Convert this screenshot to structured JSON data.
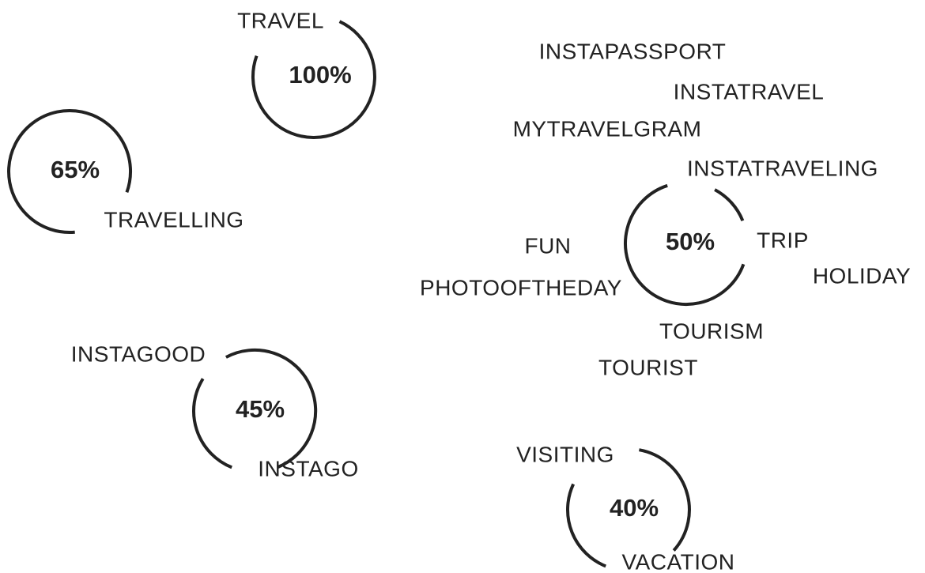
{
  "clusters": [
    {
      "percent": "100%",
      "tags": [
        "TRAVEL"
      ]
    },
    {
      "percent": "65%",
      "tags": [
        "TRAVELLING"
      ]
    },
    {
      "percent": "50%",
      "tags": [
        "INSTAPASSPORT",
        "INSTATRAVEL",
        "MYTRAVELGRAM",
        "INSTATRAVELING",
        "FUN",
        "TRIP",
        "HOLIDAY",
        "PHOTOOFTHEDAY",
        "TOURISM",
        "TOURIST"
      ]
    },
    {
      "percent": "45%",
      "tags": [
        "INSTAGOOD",
        "INSTAGO"
      ]
    },
    {
      "percent": "40%",
      "tags": [
        "VISITING",
        "VACATION"
      ]
    }
  ]
}
